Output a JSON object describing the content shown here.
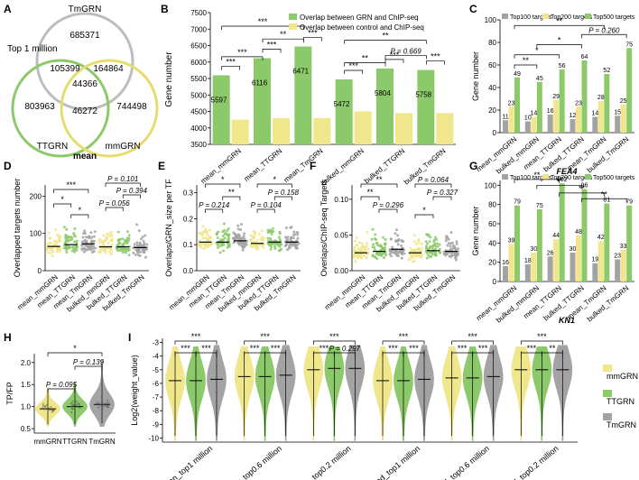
{
  "panel_labels": [
    "A",
    "B",
    "C",
    "D",
    "E",
    "F",
    "G",
    "H",
    "I"
  ],
  "colors": {
    "green": "#8cc96a",
    "yellow": "#f0e68c",
    "gray": "#a3a3a3",
    "dark": "#6b6b6b",
    "venn_gray": "#bdbdbd",
    "venn_green": "#8cc96a",
    "venn_yellow": "#e6dc6e"
  },
  "venn": {
    "top_label": "Top 1 million",
    "sets": [
      "TmGRN",
      "TTGRN",
      "mmGRN"
    ],
    "caption": "mean",
    "regions": {
      "tm_only": "685371",
      "tm_tt": "105399",
      "tm_mm": "164864",
      "all": "44366",
      "tt_only": "803963",
      "tt_mm": "46272",
      "mm_only": "744498"
    }
  },
  "chart_data": [
    {
      "id": "B",
      "type": "bar",
      "categories": [
        "mean_mmGRN",
        "mean_TTGRN",
        "mean_TmGRN",
        "bulked_mmGRN",
        "bulked_TTGRN",
        "bulked_TmGRN"
      ],
      "series": [
        {
          "name": "Overlap between GRN and ChIP-seq",
          "values": [
            5597,
            6116,
            6471,
            5472,
            5804,
            5758
          ]
        },
        {
          "name": "Overlap between control and ChIP-seq",
          "values": [
            4250,
            4300,
            4300,
            4500,
            4450,
            4450
          ]
        }
      ],
      "value_labels": [
        "5597",
        "6116",
        "6471",
        "5472",
        "5804",
        "5758"
      ],
      "ylabel": "Gene number",
      "ylim": [
        3500,
        7500
      ],
      "yticks": [
        "3500",
        "4000",
        "4500",
        "5000",
        "5500",
        "6000",
        "6500",
        "7000",
        "7500"
      ],
      "sig_within": [
        "***",
        "***",
        "***",
        "***",
        "***",
        "***"
      ],
      "sig_between": [
        "***",
        "**",
        "***",
        "**",
        "P = 0.669",
        "**",
        "***"
      ]
    },
    {
      "id": "F",
      "type": "bar",
      "categories": [
        "mean_mmGRN",
        "bulked_mmGRN",
        "mean_TTGRN",
        "bulked_TTGRN",
        "mean_TmGRN",
        "bulked_TmGRN"
      ],
      "series": [
        {
          "name": "Top100 targets",
          "values": [
            11,
            10,
            16,
            12,
            14,
            15
          ]
        },
        {
          "name": "Top200 targets",
          "values": [
            23,
            14,
            29,
            23,
            28,
            25
          ]
        },
        {
          "name": "Top500 targets",
          "values": [
            49,
            45,
            56,
            64,
            52,
            75
          ]
        }
      ],
      "ylabel": "Gene number",
      "yticks": [
        "0",
        "20",
        "40",
        "60",
        "80",
        "100"
      ],
      "ylim": [
        0,
        100
      ],
      "gene": "FEA4",
      "sig": [
        "**",
        "*",
        "*",
        "P = 0.260"
      ]
    },
    {
      "id": "G",
      "type": "bar",
      "categories": [
        "mean_mmGRN",
        "bulked_mmGRN",
        "mean_TTGRN",
        "bulked_TTGRN",
        "mean_TmGRN",
        "bulked_TmGRN"
      ],
      "series": [
        {
          "name": "Top100 targets",
          "values": [
            16,
            18,
            26,
            30,
            19,
            23
          ]
        },
        {
          "name": "Top200 targets",
          "values": [
            39,
            30,
            44,
            48,
            42,
            33
          ]
        },
        {
          "name": "Top500 targets",
          "values": [
            79,
            75,
            102,
            96,
            81,
            79
          ]
        }
      ],
      "ylabel": "Gene number",
      "yticks": [
        "0",
        "20",
        "40",
        "60",
        "80",
        "100"
      ],
      "ylim": [
        0,
        105
      ],
      "gene": "KN1",
      "sig": [
        "**",
        "**",
        "**",
        "**"
      ]
    },
    {
      "id": "C",
      "type": "scatter",
      "ylabel": "Overlapped targets number",
      "categories": [
        "mean_mmGRN",
        "mean_TTGRN",
        "mean_TmGRN",
        "bulked_mmGRN",
        "bulked_TTGRN",
        "bulked_TmGRN"
      ],
      "yticks": [
        "0",
        "100",
        "200"
      ],
      "ylim": [
        0,
        230
      ],
      "medians": [
        65,
        70,
        72,
        64,
        64,
        62
      ],
      "sig": [
        "***",
        "*",
        "*",
        "P = 0.101",
        "P = 0.394",
        "P = 0.056"
      ]
    },
    {
      "id": "D",
      "type": "scatter",
      "ylabel": "Overlaps/GRN_size per TF",
      "categories": [
        "mean_mmGRN",
        "mean_TTGRN",
        "mean_TmGRN",
        "bulked_mmGRN",
        "bulked_TTGRN",
        "bulked_TmGRN"
      ],
      "yticks": [
        "0.0",
        "0.1",
        "0.2",
        "0.3"
      ],
      "ylim": [
        0,
        0.33
      ],
      "medians": [
        0.11,
        0.11,
        0.115,
        0.105,
        0.11,
        0.11
      ],
      "sig": [
        "*",
        "**",
        "P = 0.214",
        "*",
        "P = 0.158",
        "P = 0.104"
      ]
    },
    {
      "id": "E",
      "type": "scatter",
      "ylabel": "Overlaps/ChIP-seq Targets",
      "categories": [
        "mean_mmGRN",
        "mean_TTGRN",
        "mean_TmGRN",
        "bulked_mmGRN",
        "bulked_TTGRN",
        "bulked_TmGRN"
      ],
      "yticks": [
        "0.00",
        "0.05",
        "0.10"
      ],
      "ylim": [
        0,
        0.12
      ],
      "medians": [
        0.025,
        0.027,
        0.03,
        0.025,
        0.028,
        0.027
      ],
      "sig": [
        "**",
        "**",
        "P = 0.296",
        "P = 0.064",
        "P = 0.327",
        "*"
      ]
    },
    {
      "id": "H",
      "type": "violin",
      "ylabel": "TP/FP",
      "categories": [
        "mmGRN",
        "TTGRN",
        "TmGRN"
      ],
      "yticks": [
        "0.5",
        "1.0",
        "1.5",
        "2.0"
      ],
      "ylim": [
        0.4,
        2.2
      ],
      "medians": [
        0.95,
        1.0,
        1.05
      ],
      "sig": [
        "*",
        "P = 0.139",
        "P = 0.095"
      ]
    },
    {
      "id": "I",
      "type": "violin",
      "ylabel": "Log2(weight_value)",
      "groups": [
        "mean_top1 million",
        "mean_top0.6 million",
        "mean_top0.2 million",
        "bulked_top1 million",
        "bulked_top0.6 million",
        "bulked_top0.2 million"
      ],
      "series_order": [
        "mmGRN",
        "TTGRN",
        "TmGRN"
      ],
      "legend": [
        "mmGRN",
        "TTGRN",
        "TmGRN"
      ],
      "yticks": [
        "-10",
        "-9",
        "-8",
        "-7",
        "-6",
        "-5",
        "-4",
        "-3"
      ],
      "ylim": [
        -10.3,
        -2.7
      ],
      "medians": [
        [
          -5.8,
          -5.8,
          -5.7
        ],
        [
          -5.5,
          -5.5,
          -5.4
        ],
        [
          -5.0,
          -4.9,
          -4.9
        ],
        [
          -5.8,
          -5.8,
          -5.7
        ],
        [
          -5.6,
          -5.6,
          -5.5
        ],
        [
          -5.0,
          -5.0,
          -5.0
        ]
      ],
      "sig": [
        [
          "***",
          "***",
          "***"
        ],
        [
          "***",
          "***",
          "***"
        ],
        [
          "***",
          "***",
          "P = 0.297"
        ],
        [
          "***",
          "***",
          "***"
        ],
        [
          "***",
          "***",
          "***"
        ],
        [
          "***",
          "***",
          "**"
        ]
      ]
    }
  ]
}
